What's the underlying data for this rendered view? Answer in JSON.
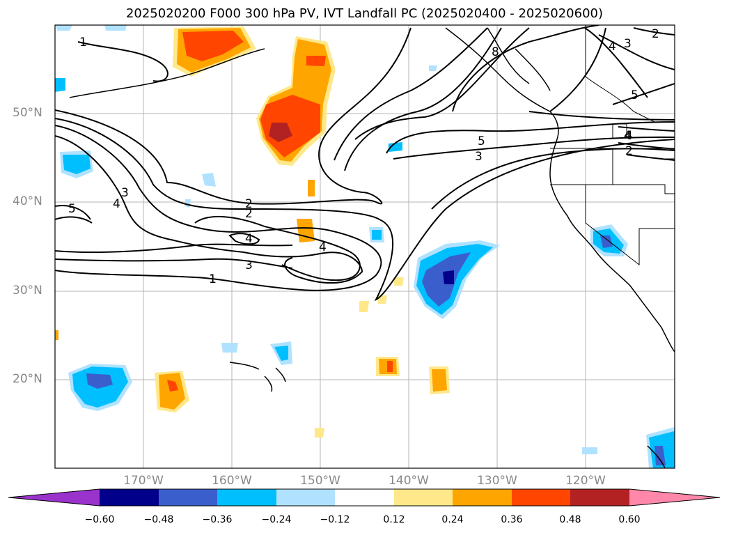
{
  "title": "2025020200 F000 300 hPa PV, IVT Landfall PC (2025020400 - 2025020600)",
  "map": {
    "lon_range": [
      -180,
      -110
    ],
    "lat_range": [
      10,
      60
    ],
    "lat_labels": [
      "50°N",
      "40°N",
      "30°N",
      "20°N"
    ],
    "lon_labels": [
      "170°W",
      "160°W",
      "150°W",
      "140°W",
      "130°W",
      "120°W"
    ],
    "contour_labels": [
      "1",
      "2",
      "3",
      "4",
      "5",
      "3",
      "4",
      "1",
      "2",
      "4",
      "3",
      "4",
      "1",
      "5",
      "3",
      "5",
      "4",
      "4",
      "2",
      "2",
      "8",
      "4"
    ]
  },
  "colorbar": {
    "colors": [
      "#9933cc",
      "#00008b",
      "#3a5fcd",
      "#00bfff",
      "#b0e2ff",
      "#ffffff",
      "#ffe88a",
      "#ffa500",
      "#ff4500",
      "#b22222",
      "#ff88aa"
    ],
    "ticks": [
      "−0.60",
      "−0.48",
      "−0.36",
      "−0.24",
      "−0.12",
      "0.12",
      "0.24",
      "0.36",
      "0.48",
      "0.60"
    ]
  }
}
